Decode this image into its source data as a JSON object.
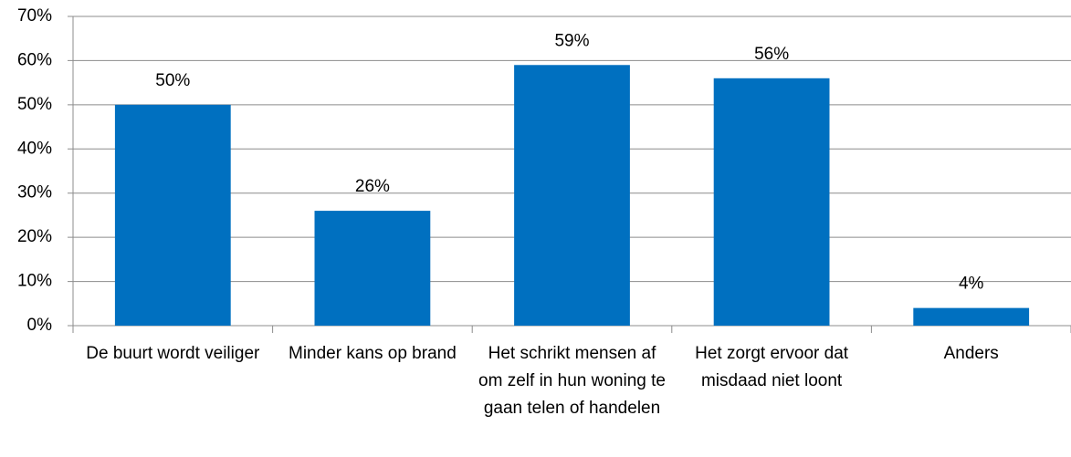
{
  "chart_data": {
    "type": "bar",
    "categories": [
      "De buurt wordt veiliger",
      "Minder kans op brand",
      "Het schrikt mensen af om zelf in hun woning te gaan telen of handelen",
      "Het zorgt ervoor dat misdaad niet loont",
      "Anders"
    ],
    "values": [
      50,
      26,
      59,
      56,
      4
    ],
    "value_labels": [
      "50%",
      "26%",
      "59%",
      "56%",
      "4%"
    ],
    "color": "#0070c0",
    "ylim": [
      0,
      70
    ],
    "yticks": [
      {
        "value": 0,
        "label": "0%"
      },
      {
        "value": 10,
        "label": "10%"
      },
      {
        "value": 20,
        "label": "20%"
      },
      {
        "value": 30,
        "label": "30%"
      },
      {
        "value": 40,
        "label": "40%"
      },
      {
        "value": 50,
        "label": "50%"
      },
      {
        "value": 60,
        "label": "60%"
      },
      {
        "value": 70,
        "label": "70%"
      }
    ],
    "grid": true
  }
}
